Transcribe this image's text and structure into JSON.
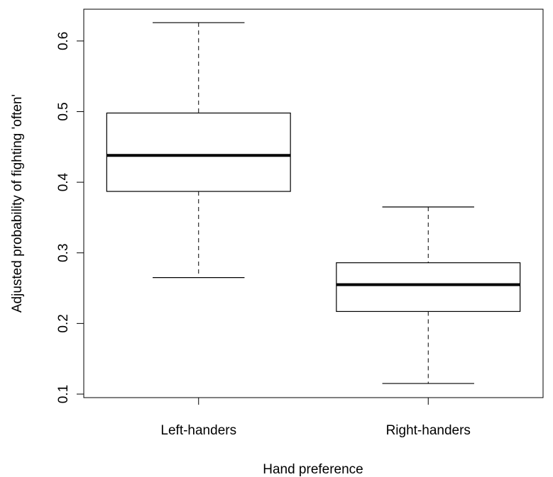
{
  "chart_data": {
    "type": "boxplot",
    "title": "",
    "xlabel": "Hand preference",
    "ylabel": "Adjusted probability of fighting 'often'",
    "ylim": [
      0.095,
      0.645
    ],
    "yticks": [
      0.1,
      0.2,
      0.3,
      0.4,
      0.5,
      0.6
    ],
    "ytick_labels": [
      "0.1",
      "0.2",
      "0.3",
      "0.4",
      "0.5",
      "0.6"
    ],
    "grid": false,
    "legend": "none",
    "categories": [
      "Left-handers",
      "Right-handers"
    ],
    "boxes": [
      {
        "category": "Left-handers",
        "min": 0.265,
        "q1": 0.387,
        "median": 0.438,
        "q3": 0.498,
        "max": 0.626
      },
      {
        "category": "Right-handers",
        "min": 0.115,
        "q1": 0.217,
        "median": 0.255,
        "q3": 0.286,
        "max": 0.365
      }
    ]
  }
}
